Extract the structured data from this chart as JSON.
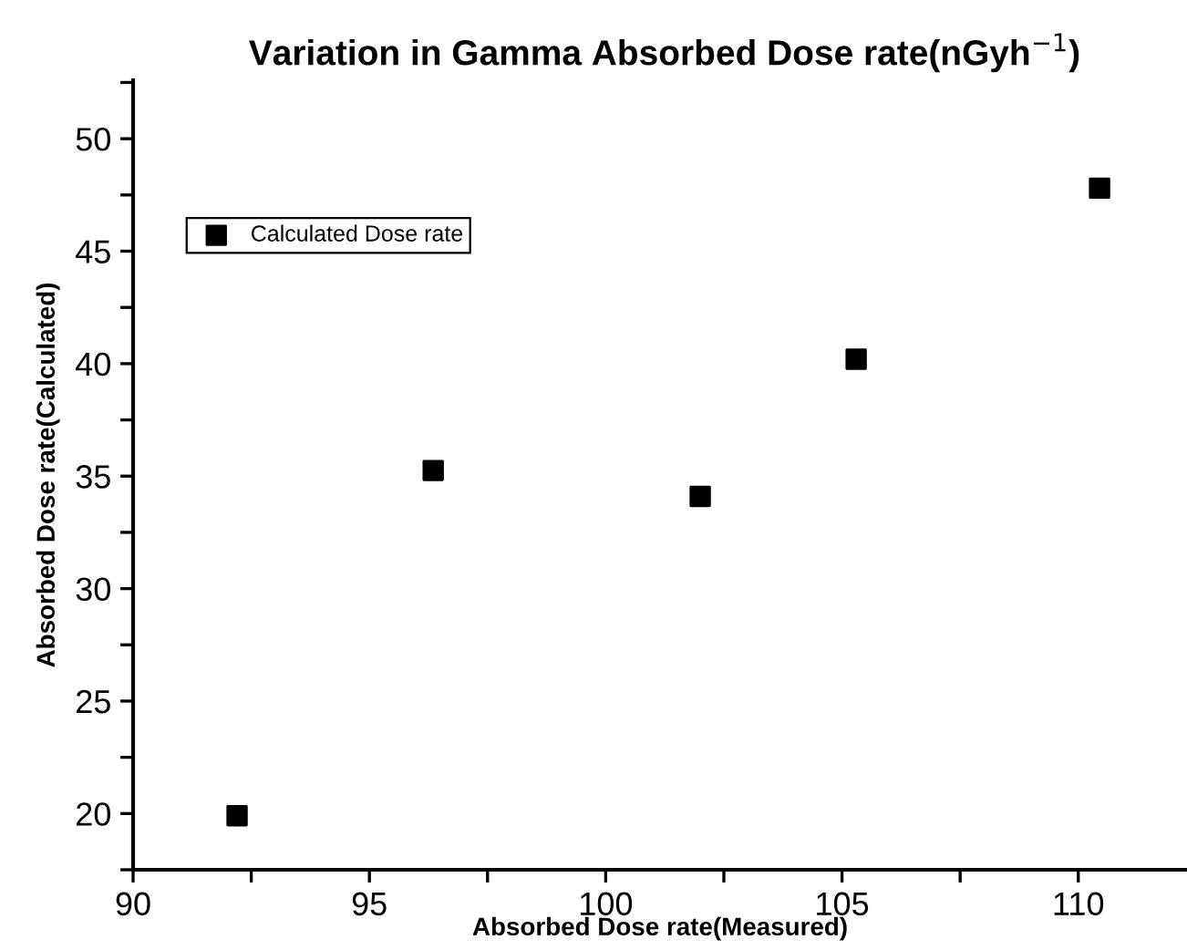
{
  "chart_data": {
    "type": "scatter",
    "title": "Variation in Gamma Absorbed Dose rate(nGyh$^{−1}$)",
    "xlabel": "Absorbed Dose rate(Measured)",
    "ylabel": "Absorbed Dose rate(Calculated)",
    "x": [
      92.2,
      96.35,
      102.0,
      105.3,
      110.45
    ],
    "series": [
      {
        "name": "Calculated Dose rate",
        "color": "#000000",
        "values": [
          19.9,
          35.25,
          34.1,
          40.2,
          47.8
        ]
      }
    ],
    "marker": "square",
    "legend": "top left",
    "grid": false,
    "xlim": [
      90,
      112.3
    ],
    "ylim": [
      17.5,
      52.6
    ],
    "xticks": [
      90,
      {
        "value": 92.5,
        "label": null
      },
      95,
      {
        "value": 97.5,
        "label": null
      },
      100,
      {
        "value": 102.5,
        "label": null
      },
      105,
      {
        "value": 107.5,
        "label": null
      },
      110
    ],
    "yticks": [
      {
        "value": 17.5,
        "label": null
      },
      20,
      {
        "value": 22.5,
        "label": null
      },
      25,
      {
        "value": 27.5,
        "label": null
      },
      30,
      {
        "value": 32.5,
        "label": null
      },
      35,
      {
        "value": 37.5,
        "label": null
      },
      40,
      {
        "value": 42.5,
        "label": null
      },
      45,
      {
        "value": 47.5,
        "label": null
      },
      50,
      {
        "value": 52.5,
        "label": null
      }
    ]
  }
}
